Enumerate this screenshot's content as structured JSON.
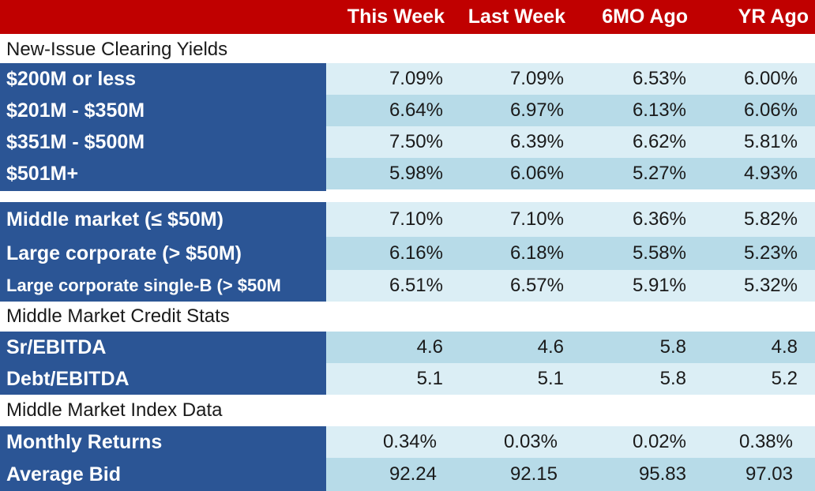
{
  "columns": [
    "This Week",
    "Last Week",
    "6MO Ago",
    "YR Ago"
  ],
  "sections": {
    "clearing": "New-Issue Clearing Yields",
    "credit": "Middle Market Credit Stats",
    "index": "Middle Market Index Data"
  },
  "clearing_rows": [
    {
      "label": "$200M or less",
      "values": [
        "7.09%",
        "7.09%",
        "6.53%",
        "6.00%"
      ]
    },
    {
      "label": "$201M - $350M",
      "values": [
        "6.64%",
        "6.97%",
        "6.13%",
        "6.06%"
      ]
    },
    {
      "label": "$351M - $500M",
      "values": [
        "7.50%",
        "6.39%",
        "6.62%",
        "5.81%"
      ]
    },
    {
      "label": "$501M+",
      "values": [
        "5.98%",
        "6.06%",
        "5.27%",
        "4.93%"
      ]
    }
  ],
  "segment_rows": [
    {
      "label": "Middle market (≤ $50M)",
      "values": [
        "7.10%",
        "7.10%",
        "6.36%",
        "5.82%"
      ]
    },
    {
      "label": "Large corporate (> $50M)",
      "values": [
        "6.16%",
        "6.18%",
        "5.58%",
        "5.23%"
      ]
    },
    {
      "label": "Large corporate single-B (> $50M",
      "values": [
        "6.51%",
        "6.57%",
        "5.91%",
        "5.32%"
      ]
    }
  ],
  "credit_rows": [
    {
      "label": "Sr/EBITDA",
      "values": [
        "4.6",
        "4.6",
        "5.8",
        "4.8"
      ]
    },
    {
      "label": "Debt/EBITDA",
      "values": [
        "5.1",
        "5.1",
        "5.8",
        "5.2"
      ]
    }
  ],
  "index_rows": [
    {
      "label": "Monthly Returns",
      "values": [
        "0.34%",
        "0.03%",
        "0.02%",
        "0.38%"
      ]
    },
    {
      "label": "Average Bid",
      "values": [
        "92.24",
        "92.15",
        "95.83",
        "97.03"
      ]
    }
  ]
}
